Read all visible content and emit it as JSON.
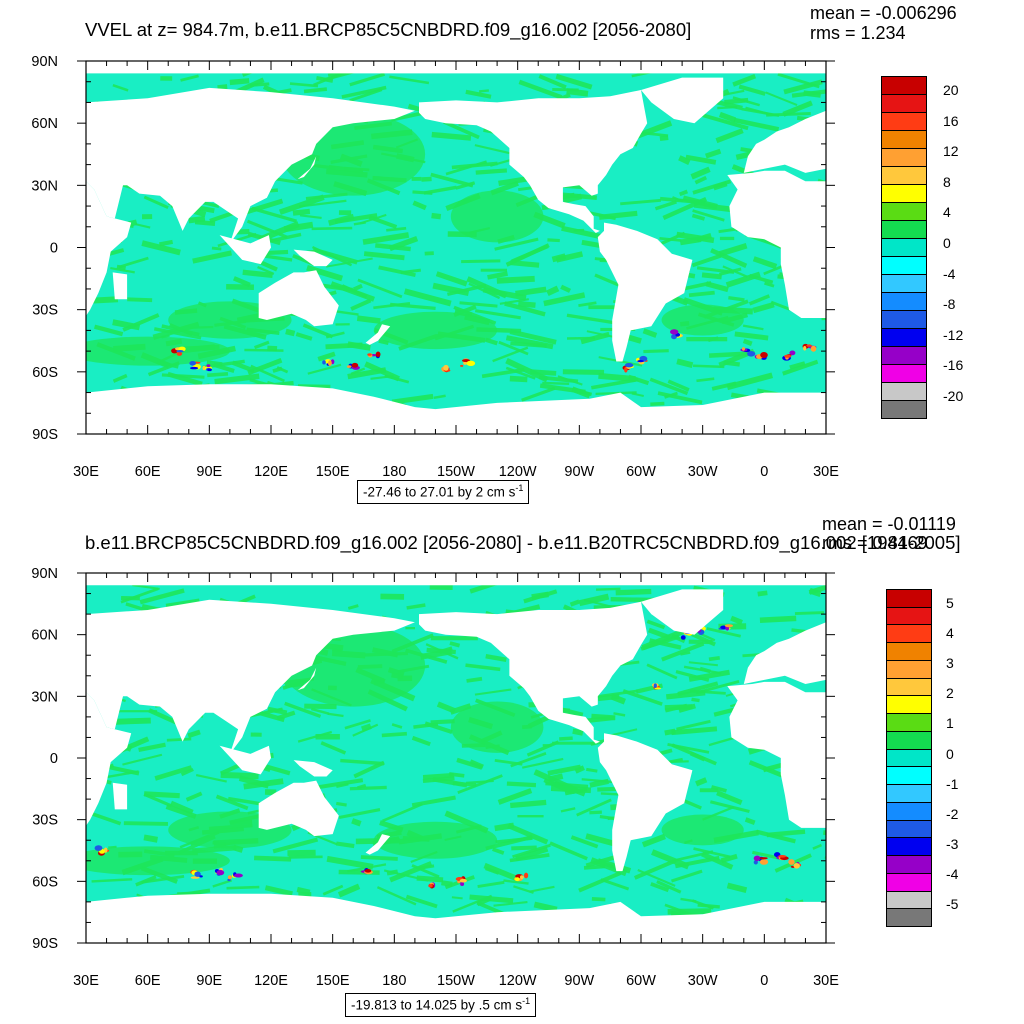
{
  "panels": [
    {
      "title": "VVEL at z= 984.7m, b.e11.BRCP85C5CNBDRD.f09_g16.002 [2056-2080]",
      "mean": "mean = -0.006296",
      "rms": "rms = 1.234",
      "range_text": "-27.46 to 27.01 by 2 cm s",
      "range_unit_exp": "-1",
      "colorbar_labels": [
        "20",
        "16",
        "12",
        "8",
        "4",
        "0",
        "-4",
        "-8",
        "-12",
        "-16",
        "-20"
      ],
      "hotspots": "top"
    },
    {
      "title": "b.e11.BRCP85C5CNBDRD.f09_g16.002 [2056-2080] - b.e11.B20TRC5CNBDRD.f09_g16.002 [1981-2005]",
      "mean": "mean = -0.01119",
      "rms": "rms = 0.4469",
      "range_text": "-19.813 to 14.025 by .5 cm s",
      "range_unit_exp": "-1",
      "colorbar_labels": [
        "5",
        "4",
        "3",
        "2",
        "1",
        "0",
        "-1",
        "-2",
        "-3",
        "-4",
        "-5"
      ],
      "hotspots": "bottom"
    }
  ],
  "chart_data": [
    {
      "type": "heatmap",
      "variable": "VVEL",
      "title": "VVEL at z= 984.7m, b.e11.BRCP85C5CNBDRD.f09_g16.002 [2056-2080]",
      "x_ticks": [
        "30E",
        "60E",
        "90E",
        "120E",
        "150E",
        "180",
        "150W",
        "120W",
        "90W",
        "60W",
        "30W",
        "0",
        "30E"
      ],
      "y_ticks": [
        "90N",
        "60N",
        "30N",
        "0",
        "30S",
        "60S",
        "90S"
      ],
      "xlim": [
        30,
        390
      ],
      "ylim": [
        -90,
        90
      ],
      "colorbar": {
        "min": -20,
        "max": 20,
        "levels": [
          20,
          16,
          12,
          8,
          4,
          0,
          -4,
          -8,
          -12,
          -16,
          -20
        ]
      },
      "data_range": [
        -27.46,
        27.01
      ],
      "contour_interval": 2,
      "units": "cm s-1",
      "mean": -0.006296,
      "rms": 1.234
    },
    {
      "type": "heatmap",
      "variable": "VVEL difference",
      "title": "b.e11.BRCP85C5CNBDRD.f09_g16.002 [2056-2080] - b.e11.B20TRC5CNBDRD.f09_g16.002 [1981-2005]",
      "x_ticks": [
        "30E",
        "60E",
        "90E",
        "120E",
        "150E",
        "180",
        "150W",
        "120W",
        "90W",
        "60W",
        "30W",
        "0",
        "30E"
      ],
      "y_ticks": [
        "90N",
        "60N",
        "30N",
        "0",
        "30S",
        "60S",
        "90S"
      ],
      "xlim": [
        30,
        390
      ],
      "ylim": [
        -90,
        90
      ],
      "colorbar": {
        "min": -5,
        "max": 5,
        "levels": [
          5,
          4,
          3,
          2,
          1,
          0,
          -1,
          -2,
          -3,
          -4,
          -5
        ]
      },
      "data_range": [
        -19.813,
        14.025
      ],
      "contour_interval": 0.5,
      "units": "cm s-1",
      "mean": -0.01119,
      "rms": 0.4469
    }
  ],
  "colors": {
    "colorbar": [
      "#c80000",
      "#e61414",
      "#ff3c14",
      "#f08200",
      "#ffa032",
      "#ffc83c",
      "#ffff00",
      "#5adc14",
      "#14dc50",
      "#00e6c8",
      "#00ffff",
      "#32c8ff",
      "#148cff",
      "#1e5ae6",
      "#0000f0",
      "#9600c8",
      "#f000e6",
      "#c8c8c8",
      "#787878"
    ],
    "ocean_base": "#19eec4",
    "ocean_green": "#1ee65a",
    "land": "#ffffff"
  }
}
